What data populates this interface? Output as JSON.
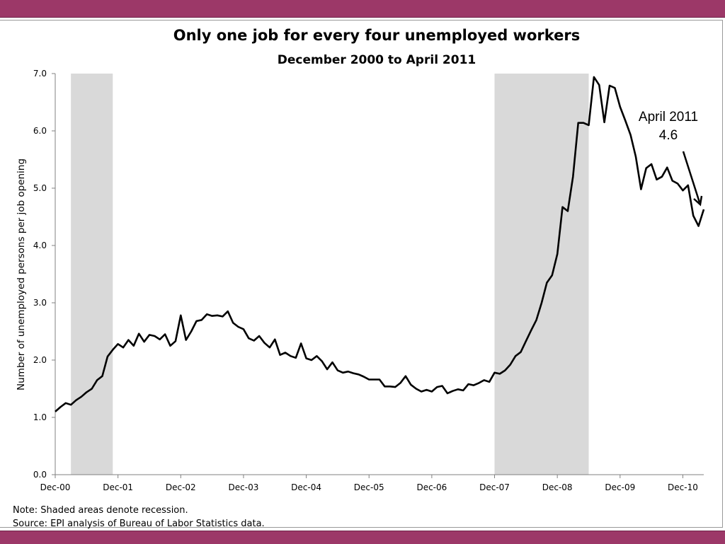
{
  "chart_data": {
    "type": "line",
    "title": "Only one job for every four unemployed workers",
    "subtitle": "December 2000 to April 2011",
    "xlabel": "",
    "ylabel": "Number of unemployed persons per job opening",
    "xlim": [
      "Dec-00",
      "Apr-11"
    ],
    "ylim": [
      0,
      7
    ],
    "y_ticks": [
      "0.0",
      "1.0",
      "2.0",
      "3.0",
      "4.0",
      "5.0",
      "6.0",
      "7.0"
    ],
    "x_ticks": [
      "Dec-00",
      "Dec-01",
      "Dec-02",
      "Dec-03",
      "Dec-04",
      "Dec-05",
      "Dec-06",
      "Dec-07",
      "Dec-08",
      "Dec-09",
      "Dec-10"
    ],
    "grid": false,
    "legend": "none",
    "recessions": [
      {
        "start": "Mar-01",
        "end": "Nov-01"
      },
      {
        "start": "Dec-07",
        "end": "Jun-09"
      }
    ],
    "series": [
      {
        "color": "#000000",
        "values": [
          1.1,
          1.18,
          1.25,
          1.22,
          1.3,
          1.36,
          1.44,
          1.5,
          1.65,
          1.72,
          2.06,
          2.18,
          2.28,
          2.22,
          2.35,
          2.25,
          2.46,
          2.32,
          2.44,
          2.42,
          2.36,
          2.45,
          2.25,
          2.33,
          2.78,
          2.35,
          2.5,
          2.68,
          2.7,
          2.8,
          2.77,
          2.78,
          2.76,
          2.85,
          2.65,
          2.58,
          2.54,
          2.38,
          2.34,
          2.42,
          2.3,
          2.22,
          2.36,
          2.09,
          2.13,
          2.07,
          2.04,
          2.29,
          2.03,
          2.0,
          2.07,
          1.98,
          1.84,
          1.96,
          1.82,
          1.78,
          1.8,
          1.77,
          1.75,
          1.71,
          1.66,
          1.66,
          1.66,
          1.54,
          1.54,
          1.53,
          1.6,
          1.72,
          1.57,
          1.5,
          1.45,
          1.48,
          1.45,
          1.53,
          1.55,
          1.42,
          1.46,
          1.49,
          1.47,
          1.58,
          1.56,
          1.6,
          1.65,
          1.62,
          1.78,
          1.76,
          1.82,
          1.92,
          2.07,
          2.14,
          2.33,
          2.52,
          2.7,
          3.0,
          3.35,
          3.48,
          3.85,
          4.67,
          4.6,
          5.2,
          6.14,
          6.14,
          6.1,
          6.94,
          6.8,
          6.15,
          6.79,
          6.75,
          6.42,
          6.18,
          5.93,
          5.55,
          4.98,
          5.35,
          5.42,
          5.15,
          5.2,
          5.36,
          5.13,
          5.08,
          4.96,
          5.05,
          4.52,
          4.34,
          4.63
        ]
      }
    ],
    "annotations": [
      {
        "line1": "April 2011",
        "line2": "4.6"
      }
    ]
  },
  "notes": {
    "note": "Note: Shaded areas denote recession.",
    "source": "Source: EPI analysis of Bureau of Labor Statistics data."
  }
}
